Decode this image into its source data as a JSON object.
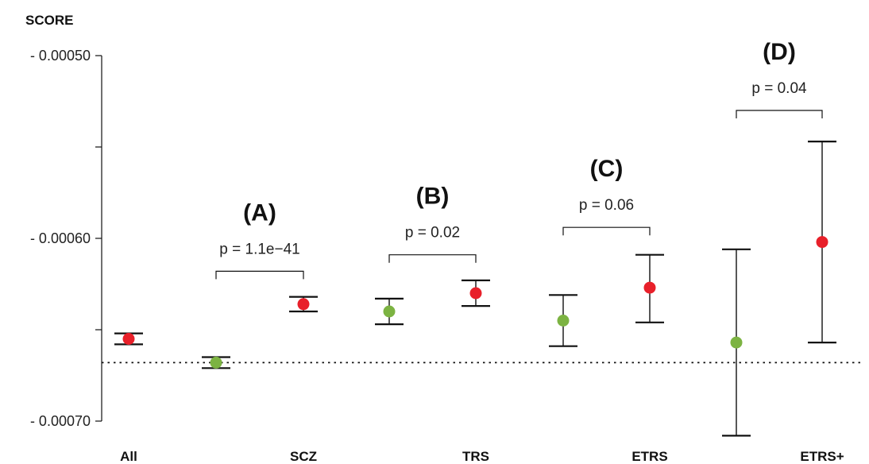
{
  "chart_data": {
    "type": "scatter",
    "ylabel": "SCORE",
    "ylim": [
      -0.0007,
      -0.0005
    ],
    "yticks": [
      -0.0005,
      -0.00055,
      -0.0006,
      -0.00065,
      -0.0007
    ],
    "ytick_labels": [
      "- 0.00050",
      "",
      "- 0.00060",
      "",
      "- 0.00070"
    ],
    "x_labels": [
      {
        "label": "All",
        "at": 0
      },
      {
        "label": "SCZ",
        "at": 2
      },
      {
        "label": "TRS",
        "at": 4
      },
      {
        "label": "ETRS",
        "at": 6
      },
      {
        "label": "ETRS+",
        "at": 8
      }
    ],
    "reference_line": -0.000668,
    "colors": {
      "control": "#7cb342",
      "case": "#e8202a",
      "line": "#111111"
    },
    "points": [
      {
        "x": 0,
        "y": -0.000655,
        "low": -0.000658,
        "high": -0.000652,
        "color": "case"
      },
      {
        "x": 1,
        "y": -0.000668,
        "low": -0.000671,
        "high": -0.000665,
        "color": "control"
      },
      {
        "x": 2,
        "y": -0.000636,
        "low": -0.00064,
        "high": -0.000632,
        "color": "case"
      },
      {
        "x": 3,
        "y": -0.00064,
        "low": -0.000647,
        "high": -0.000633,
        "color": "control"
      },
      {
        "x": 4,
        "y": -0.00063,
        "low": -0.000637,
        "high": -0.000623,
        "color": "case"
      },
      {
        "x": 5,
        "y": -0.000645,
        "low": -0.000659,
        "high": -0.000631,
        "color": "control"
      },
      {
        "x": 6,
        "y": -0.000627,
        "low": -0.000646,
        "high": -0.000609,
        "color": "case"
      },
      {
        "x": 7,
        "y": -0.000657,
        "low": -0.000708,
        "high": -0.000606,
        "color": "control"
      },
      {
        "x": 8,
        "y": -0.000602,
        "low": -0.000657,
        "high": -0.000547,
        "color": "case"
      }
    ],
    "comparisons": [
      {
        "group": "(A)",
        "p": "p = 1.1e−41",
        "x1": 1,
        "x2": 2,
        "bracket_y": -0.000618
      },
      {
        "group": "(B)",
        "p": "p = 0.02",
        "x1": 3,
        "x2": 4,
        "bracket_y": -0.000609
      },
      {
        "group": "(C)",
        "p": "p = 0.06",
        "x1": 5,
        "x2": 6,
        "bracket_y": -0.000594
      },
      {
        "group": "(D)",
        "p": "p = 0.04",
        "x1": 7,
        "x2": 8,
        "bracket_y": -0.00053
      }
    ]
  }
}
